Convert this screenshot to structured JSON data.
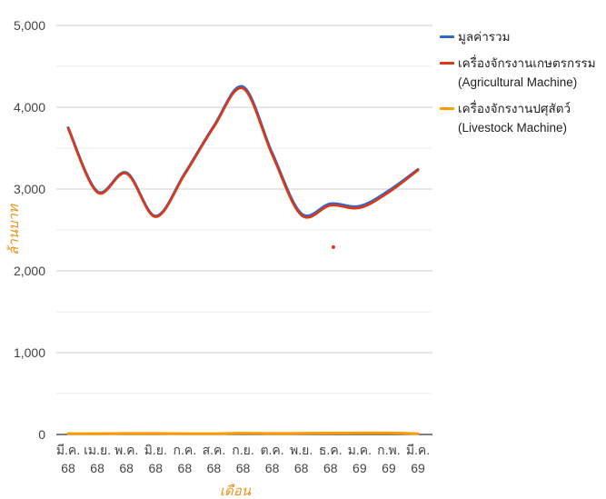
{
  "chart_data": {
    "type": "line",
    "title": "",
    "xlabel": "เดือน",
    "ylabel": "ล้านบาท",
    "ylim": [
      0,
      5000
    ],
    "yticks": [
      0,
      1000,
      2000,
      3000,
      4000,
      5000
    ],
    "ytick_labels": [
      "0",
      "1,000",
      "2,000",
      "3,000",
      "4,000",
      "5,000"
    ],
    "categories": [
      [
        "มี.ค.",
        "68"
      ],
      [
        "เม.ย.",
        "68"
      ],
      [
        "พ.ค.",
        "68"
      ],
      [
        "มิ.ย.",
        "68"
      ],
      [
        "ก.ค.",
        "68"
      ],
      [
        "ส.ค.",
        "68"
      ],
      [
        "ก.ย.",
        "68"
      ],
      [
        "ต.ค.",
        "68"
      ],
      [
        "พ.ย.",
        "68"
      ],
      [
        "ธ.ค.",
        "68"
      ],
      [
        "ม.ค.",
        "69"
      ],
      [
        "ก.พ.",
        "69"
      ],
      [
        "มี.ค.",
        "69"
      ]
    ],
    "grid": true,
    "legend_position": "right",
    "series": [
      {
        "name": "มูลค่ารวม",
        "color": "#3366cc",
        "values": [
          3750,
          2970,
          3200,
          2670,
          3190,
          3770,
          4250,
          3440,
          2700,
          2820,
          2790,
          2980,
          3240
        ]
      },
      {
        "name": "เครื่องจักรงานเกษตรกรรม (Agricultural Machine)",
        "color": "#dc3912",
        "values": [
          3740,
          2960,
          3190,
          2660,
          3180,
          3760,
          4230,
          3420,
          2680,
          2800,
          2770,
          2960,
          3230
        ]
      },
      {
        "name": "เครื่องจักรงานปศุสัตว์ (Livestock Machine)",
        "color": "#ff9900",
        "values": [
          10,
          10,
          12,
          12,
          10,
          10,
          15,
          12,
          14,
          16,
          18,
          18,
          10
        ]
      }
    ],
    "annotations": [
      {
        "x": 9.1,
        "y": 2290,
        "color": "#dc3912"
      }
    ]
  }
}
